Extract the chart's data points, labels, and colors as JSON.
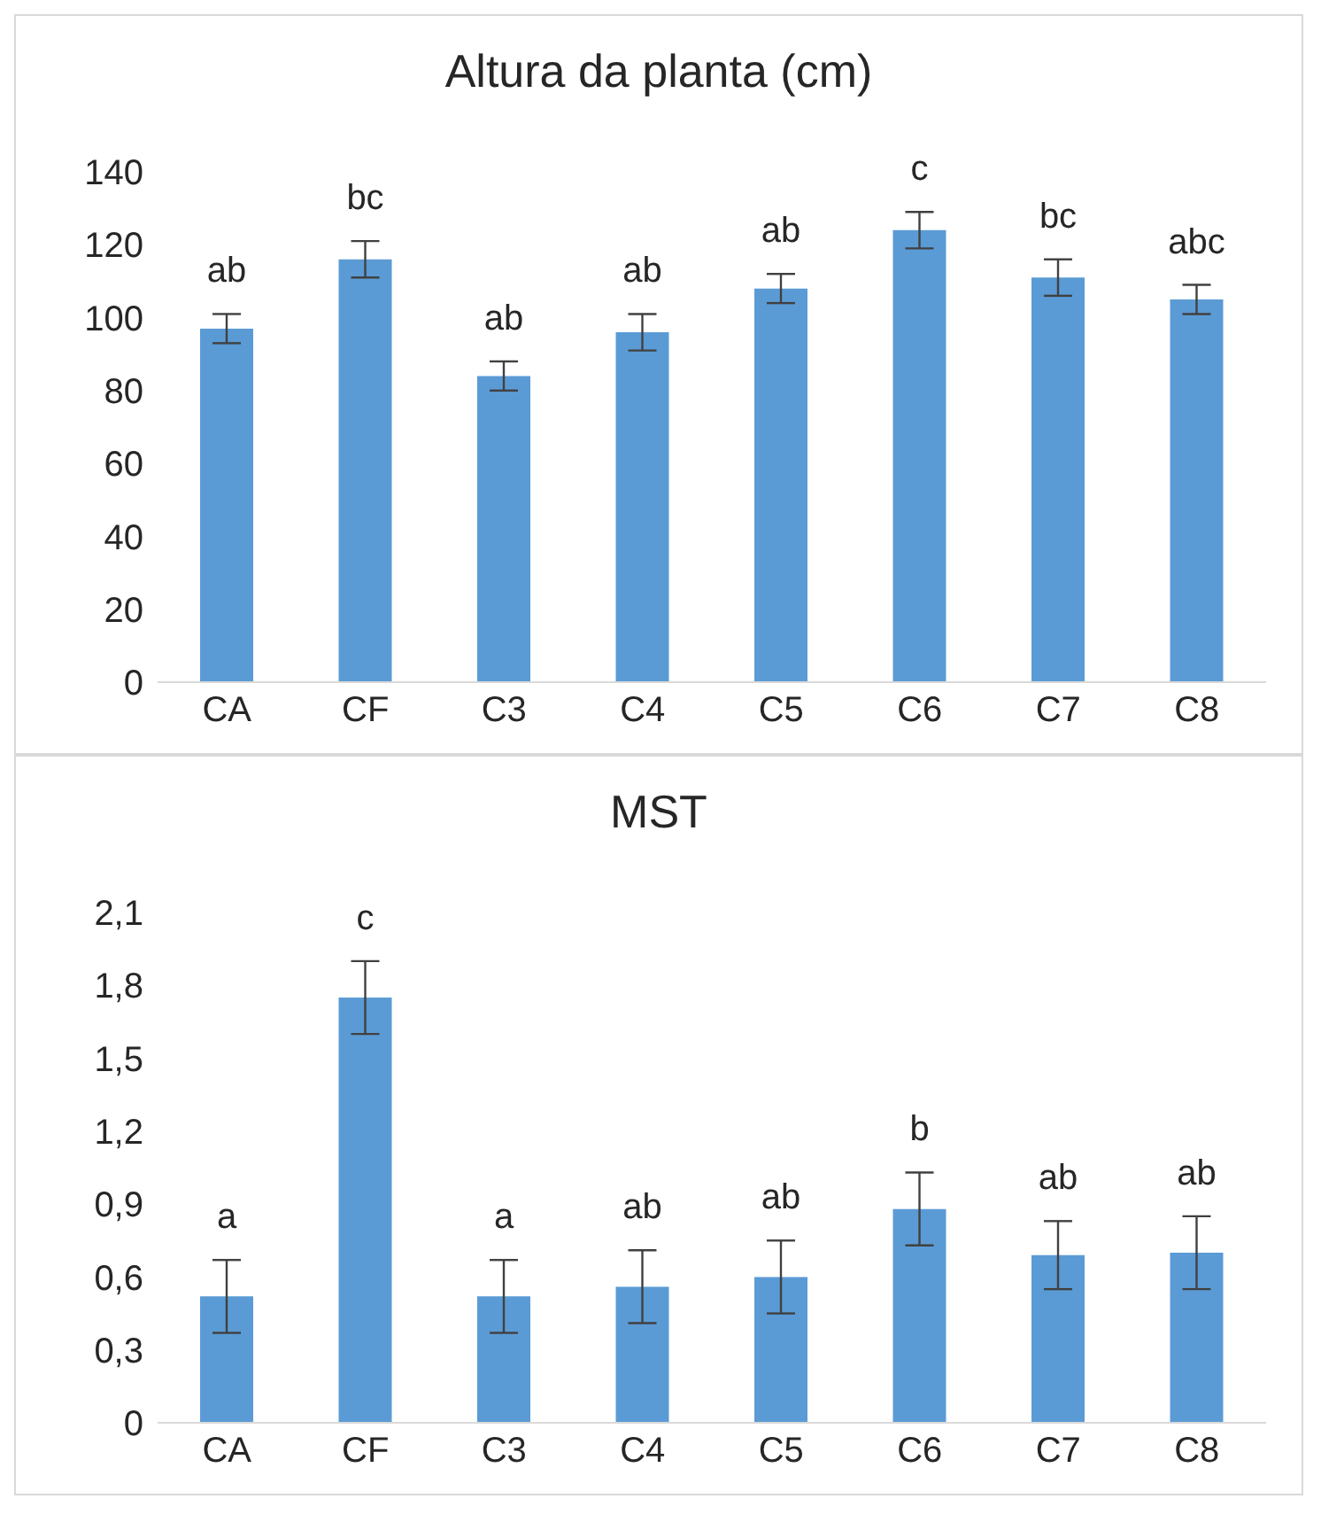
{
  "chart_data": [
    {
      "type": "bar",
      "title": "Altura da planta (cm)",
      "categories": [
        "CA",
        "CF",
        "C3",
        "C4",
        "C5",
        "C6",
        "C7",
        "C8"
      ],
      "values": [
        97,
        116,
        84,
        96,
        108,
        124,
        111,
        105
      ],
      "errors": [
        4,
        5,
        4,
        5,
        4,
        5,
        5,
        4
      ],
      "color": "#5b9bd5",
      "ylim": [
        0,
        140
      ],
      "yticks": [
        0,
        20,
        40,
        60,
        80,
        100,
        120,
        140
      ],
      "grid": false,
      "legend": false,
      "annotations": [
        "ab",
        "bc",
        "ab",
        "ab",
        "ab",
        "c",
        "bc",
        "abc"
      ]
    },
    {
      "type": "bar",
      "title": "MST",
      "categories": [
        "CA",
        "CF",
        "C3",
        "C4",
        "C5",
        "C6",
        "C7",
        "C8"
      ],
      "values": [
        0.52,
        1.75,
        0.52,
        0.56,
        0.6,
        0.88,
        0.69,
        0.7
      ],
      "errors": [
        0.15,
        0.15,
        0.15,
        0.15,
        0.15,
        0.15,
        0.14,
        0.15
      ],
      "color": "#5b9bd5",
      "ylim": [
        0,
        2.1
      ],
      "yticks": [
        0,
        {
          "value": 0.3,
          "label": "0,3"
        },
        {
          "value": 0.6,
          "label": "0,6"
        },
        {
          "value": 0.9,
          "label": "0,9"
        },
        {
          "value": 1.2,
          "label": "1,2"
        },
        {
          "value": 1.5,
          "label": "1,5"
        },
        {
          "value": 1.8,
          "label": "1,8"
        },
        {
          "value": 2.1,
          "label": "2,1"
        }
      ],
      "grid": false,
      "legend": false,
      "annotations": [
        "a",
        "c",
        "a",
        "ab",
        "ab",
        "b",
        "ab",
        "ab"
      ]
    }
  ]
}
